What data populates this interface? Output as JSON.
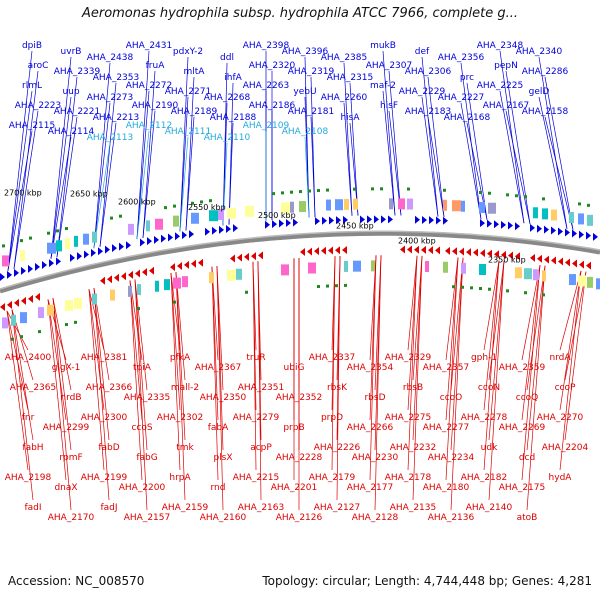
{
  "title": "Aeromonas hydrophila subsp. hydrophila ATCC 7966, complete g...",
  "footer": {
    "accession": "Accession: NC_008570",
    "summary": "Topology: circular; Length: 4,744,448 bp; Genes: 4,281"
  },
  "colors": {
    "forward": "#0000dd",
    "reverse": "#dd0000",
    "rna": "#22aadd",
    "backbone": "#888888"
  },
  "scale_ticks": [
    "2700 kbp",
    "2650 kbp",
    "2600 kbp",
    "2550 kbp",
    "2500 kbp",
    "2450 kbp",
    "2400 kbp",
    "2350 kbp"
  ],
  "top_labels": [
    "dpiB",
    "uvrB",
    "AHA_2438",
    "AHA_2431",
    "pdxY-2",
    "ddl",
    "AHA_2398",
    "AHA_2396",
    "AHA_2385",
    "mukB",
    "def",
    "AHA_2356",
    "AHA_2348",
    "AHA_2340",
    "aroC",
    "AHA_2339",
    "AHA_2353",
    "fruA",
    "mltA",
    "ihfA",
    "AHA_2320",
    "AHA_2319",
    "AHA_2315",
    "AHA_2307",
    "AHA_2306",
    "prc",
    "pepN",
    "AHA_2286",
    "rlmL",
    "uup",
    "AHA_2273",
    "AHA_2272",
    "AHA_2271",
    "AHA_2268",
    "AHA_2263",
    "yebU",
    "AHA_2260",
    "maf-2",
    "AHA_2229",
    "AHA_2227",
    "AHA_2225",
    "gelD",
    "AHA_2223",
    "AHA_2221",
    "AHA_2213",
    "AHA_2190",
    "AHA_2189",
    "AHA_2188",
    "AHA_2186",
    "AHA_2181",
    "hisA",
    "hisF",
    "AHA_2183",
    "AHA_2168",
    "AHA_2167",
    "AHA_2158",
    "AHA_2115",
    "AHA_2114",
    "AHA_2113",
    "AHA_2112",
    "AHA_2111",
    "AHA_2110",
    "AHA_2109",
    "AHA_2108"
  ],
  "bottom_labels": [
    "AHA_2400",
    "glgX-1",
    "AHA_2381",
    "tpiA",
    "pfkA",
    "AHA_2367",
    "truR",
    "ubiG",
    "AHA_2337",
    "AHA_2354",
    "AHA_2329",
    "AHA_2357",
    "gph-1",
    "AHA_2359",
    "nrdA",
    "AHA_2365",
    "nrdB",
    "AHA_2366",
    "AHA_2335",
    "mall-2",
    "AHA_2350",
    "AHA_2351",
    "AHA_2352",
    "rbsK",
    "rbsD",
    "rbsB",
    "ccoO",
    "ccoN",
    "ccoQ",
    "ccoP",
    "fnr",
    "AHA_2299",
    "AHA_2300",
    "ccoS",
    "AHA_2302",
    "fabA",
    "AHA_2279",
    "prpB",
    "prpD",
    "AHA_2266",
    "AHA_2275",
    "AHA_2277",
    "AHA_2278",
    "AHA_2269",
    "AHA_2270",
    "fabH",
    "rpmF",
    "fabD",
    "fabG",
    "tmk",
    "plsX",
    "acpP",
    "AHA_2228",
    "AHA_2226",
    "AHA_2230",
    "AHA_2232",
    "AHA_2234",
    "udk",
    "dcd",
    "AHA_2204",
    "AHA_2198",
    "dnaX",
    "AHA_2199",
    "AHA_2200",
    "hrpA",
    "rnd",
    "AHA_2215",
    "AHA_2201",
    "AHA_2179",
    "AHA_2177",
    "AHA_2178",
    "AHA_2180",
    "AHA_2182",
    "AHA_2175",
    "hydA",
    "fadI",
    "AHA_2170",
    "fadJ",
    "AHA_2157",
    "AHA_2159",
    "AHA_2160",
    "AHA_2163",
    "AHA_2126",
    "AHA_2127",
    "AHA_2128",
    "AHA_2135",
    "AHA_2136",
    "AHA_2140",
    "atoB"
  ]
}
